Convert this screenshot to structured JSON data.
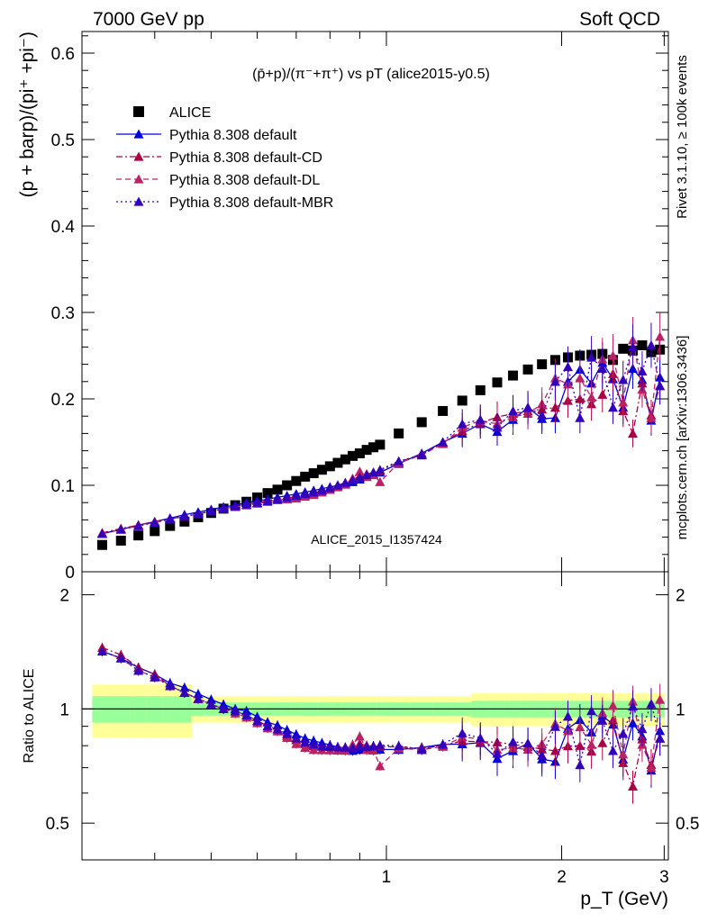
{
  "header": {
    "left": "7000 GeV pp",
    "right": "Soft QCD"
  },
  "side_labels": {
    "rivet": "Rivet 3.1.10, ≥ 100k events",
    "mcplots": "mcplots.cern.ch [arXiv:1306.3436]"
  },
  "chart_data": [
    {
      "type": "scatter",
      "title": "(p̄+p)/(π⁻+π⁺) vs pT (alice2015-y0.5)",
      "xlabel": "p_T (GeV)",
      "ylabel": "(p + barp)/(pi⁺ +pi⁻)",
      "watermark": "ALICE_2015_I1357424",
      "ylim": [
        0,
        0.625
      ],
      "yticks": [
        "0",
        "0.1",
        "0.2",
        "0.3",
        "0.4",
        "0.5",
        "0.6"
      ],
      "x_log_scale": true,
      "legend_placement": "top-left",
      "x": [
        0.325,
        0.35,
        0.375,
        0.4,
        0.425,
        0.45,
        0.475,
        0.5,
        0.525,
        0.55,
        0.575,
        0.6,
        0.625,
        0.65,
        0.675,
        0.7,
        0.725,
        0.75,
        0.775,
        0.8,
        0.825,
        0.85,
        0.875,
        0.9,
        0.925,
        0.95,
        0.975,
        1.05,
        1.15,
        1.25,
        1.35,
        1.45,
        1.55,
        1.65,
        1.75,
        1.85,
        1.95,
        2.05,
        2.15,
        2.25,
        2.35,
        2.45,
        2.55,
        2.65,
        2.75,
        2.85,
        2.95
      ],
      "series": [
        {
          "name": "ALICE",
          "color": "#000000",
          "marker": "square",
          "values": [
            0.031,
            0.036,
            0.042,
            0.047,
            0.053,
            0.058,
            0.063,
            0.068,
            0.073,
            0.077,
            0.081,
            0.086,
            0.091,
            0.095,
            0.1,
            0.105,
            0.11,
            0.114,
            0.118,
            0.122,
            0.126,
            0.13,
            0.134,
            0.137,
            0.141,
            0.144,
            0.147,
            0.16,
            0.173,
            0.186,
            0.198,
            0.21,
            0.219,
            0.227,
            0.234,
            0.24,
            0.245,
            0.248,
            0.25,
            0.251,
            0.252,
            0.245,
            0.258,
            0.256,
            0.262,
            0.254,
            0.257
          ]
        },
        {
          "name": "Pythia 8.308 default",
          "color": "#0000dd",
          "dash": "solid",
          "values": [
            0.044,
            0.049,
            0.054,
            0.058,
            0.062,
            0.066,
            0.069,
            0.072,
            0.075,
            0.077,
            0.08,
            0.082,
            0.084,
            0.086,
            0.088,
            0.09,
            0.092,
            0.094,
            0.096,
            0.098,
            0.1,
            0.102,
            0.104,
            0.107,
            0.11,
            0.113,
            0.115,
            0.125,
            0.137,
            0.15,
            0.16,
            0.171,
            0.162,
            0.176,
            0.19,
            0.177,
            0.178,
            0.22,
            0.234,
            0.218,
            0.242,
            0.223,
            0.19,
            0.235,
            0.222,
            0.175,
            0.225
          ]
        },
        {
          "name": "Pythia 8.308 default-CD",
          "color": "#aa0044",
          "dash": "dashdot",
          "values": [
            0.045,
            0.05,
            0.054,
            0.058,
            0.061,
            0.064,
            0.067,
            0.07,
            0.073,
            0.076,
            0.078,
            0.08,
            0.082,
            0.084,
            0.085,
            0.087,
            0.089,
            0.091,
            0.094,
            0.097,
            0.1,
            0.103,
            0.106,
            0.111,
            0.113,
            0.115,
            0.117,
            0.127,
            0.136,
            0.149,
            0.163,
            0.172,
            0.179,
            0.183,
            0.186,
            0.188,
            0.19,
            0.198,
            0.2,
            0.194,
            0.205,
            0.229,
            0.186,
            0.16,
            0.218,
            0.181,
            0.215
          ]
        },
        {
          "name": "Pythia 8.308 default-DL",
          "color": "#bb2266",
          "dash": "dash",
          "values": [
            0.044,
            0.049,
            0.053,
            0.057,
            0.061,
            0.064,
            0.067,
            0.07,
            0.073,
            0.075,
            0.077,
            0.079,
            0.081,
            0.083,
            0.084,
            0.085,
            0.087,
            0.089,
            0.092,
            0.095,
            0.098,
            0.101,
            0.108,
            0.116,
            0.11,
            0.112,
            0.104,
            0.126,
            0.135,
            0.148,
            0.167,
            0.175,
            0.171,
            0.179,
            0.183,
            0.194,
            0.224,
            0.217,
            0.224,
            0.202,
            0.246,
            0.25,
            0.196,
            0.268,
            0.211,
            0.178,
            0.272
          ]
        },
        {
          "name": "Pythia 8.308 default-MBR",
          "color": "#3300bb",
          "dash": "dot",
          "values": [
            0.044,
            0.049,
            0.053,
            0.057,
            0.061,
            0.064,
            0.067,
            0.07,
            0.073,
            0.076,
            0.078,
            0.08,
            0.082,
            0.084,
            0.086,
            0.088,
            0.09,
            0.092,
            0.094,
            0.097,
            0.1,
            0.103,
            0.106,
            0.109,
            0.112,
            0.115,
            0.118,
            0.128,
            0.135,
            0.15,
            0.171,
            0.176,
            0.167,
            0.186,
            0.19,
            0.181,
            0.22,
            0.237,
            0.178,
            0.248,
            0.235,
            0.19,
            0.222,
            0.26,
            0.232,
            0.262,
            0.215
          ]
        }
      ]
    },
    {
      "type": "scatter",
      "ylabel": "Ratio to ALICE",
      "xlabel": "p_T (GeV)",
      "ylim": [
        0.4,
        2.3
      ],
      "y_log_scale": true,
      "yticks": [
        "0.5",
        "1",
        "2"
      ],
      "xticks": [
        "1",
        "2",
        "3"
      ],
      "reference": 1,
      "bands": [
        "green inner uncertainty",
        "yellow outer uncertainty"
      ],
      "note": "ratio of each Pythia series to ALICE at the same x values"
    }
  ]
}
